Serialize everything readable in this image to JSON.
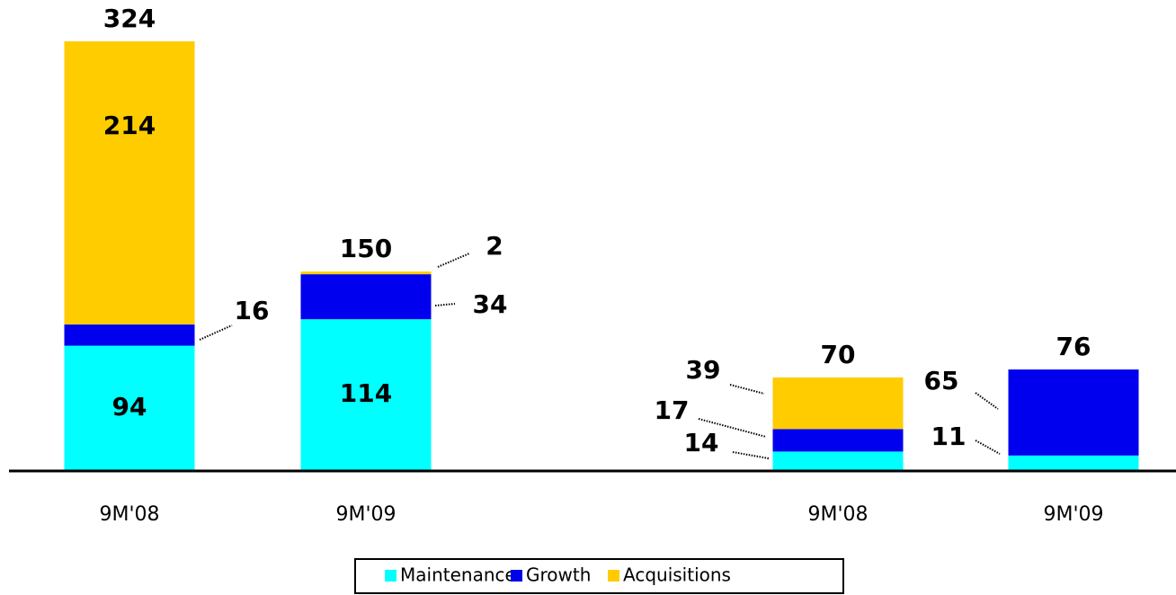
{
  "chart_data": {
    "type": "stacked_bar",
    "categories": [
      "9M'08",
      "9M'09",
      "9M'08",
      "9M'09"
    ],
    "series": [
      {
        "name": "Maintenance",
        "color": "#00ffff",
        "values": [
          94,
          114,
          14,
          11
        ]
      },
      {
        "name": "Growth",
        "color": "#0000ee",
        "values": [
          16,
          34,
          17,
          65
        ]
      },
      {
        "name": "Acquisitions",
        "color": "#ffcc00",
        "values": [
          214,
          2,
          39,
          null
        ]
      }
    ],
    "totals": [
      324,
      150,
      70,
      76
    ],
    "legend": "bottom"
  }
}
